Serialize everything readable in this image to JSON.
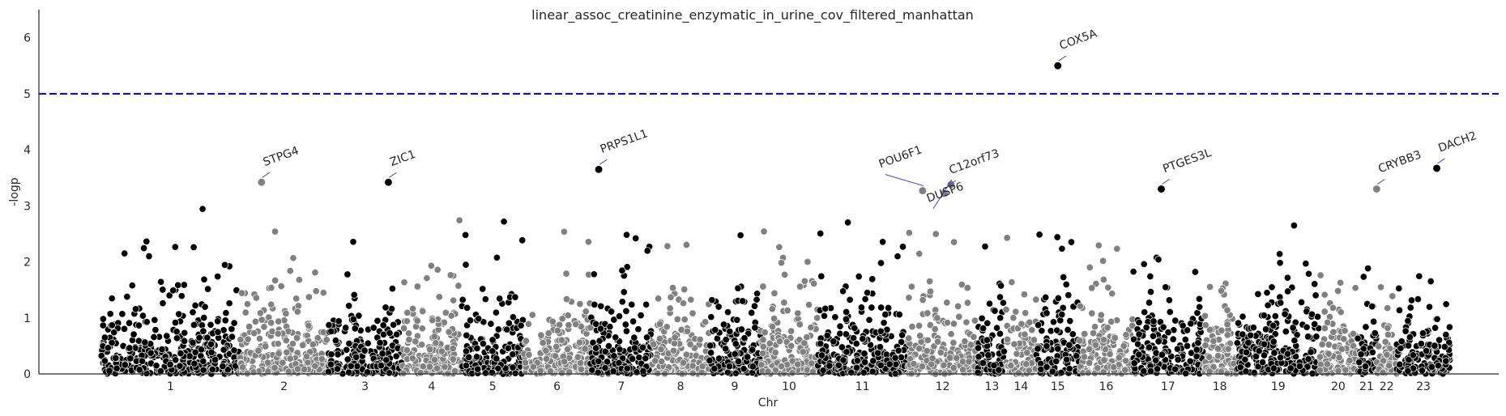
{
  "chart_data": {
    "type": "scatter",
    "title": "linear_assoc_creatinine_enzymatic_in_urine_cov_filtered_manhattan",
    "xlabel": "Chr",
    "ylabel": "-logp",
    "ylim": [
      0,
      6.5
    ],
    "yticks": [
      0,
      1,
      2,
      3,
      4,
      5,
      6
    ],
    "threshold": 5,
    "threshold_color": "#0000cc",
    "colors": {
      "dark": "#000000",
      "light": "#808080"
    },
    "chromosomes": [
      {
        "label": "1",
        "start": 0.0,
        "end": 8.3
      },
      {
        "label": "2",
        "start": 8.3,
        "end": 13.6
      },
      {
        "label": "3",
        "start": 13.6,
        "end": 18.0
      },
      {
        "label": "4",
        "start": 18.0,
        "end": 21.6
      },
      {
        "label": "5",
        "start": 21.6,
        "end": 25.3
      },
      {
        "label": "6",
        "start": 25.3,
        "end": 29.3
      },
      {
        "label": "7",
        "start": 29.3,
        "end": 33.0
      },
      {
        "label": "8",
        "start": 33.0,
        "end": 36.4
      },
      {
        "label": "9",
        "start": 36.4,
        "end": 39.5
      },
      {
        "label": "10",
        "start": 39.5,
        "end": 42.9
      },
      {
        "label": "11",
        "start": 42.9,
        "end": 48.3
      },
      {
        "label": "12",
        "start": 48.3,
        "end": 52.5
      },
      {
        "label": "13",
        "start": 52.5,
        "end": 54.2
      },
      {
        "label": "14",
        "start": 54.2,
        "end": 56.0
      },
      {
        "label": "15",
        "start": 56.0,
        "end": 58.6
      },
      {
        "label": "16",
        "start": 58.6,
        "end": 61.8
      },
      {
        "label": "17",
        "start": 61.8,
        "end": 66.0
      },
      {
        "label": "18",
        "start": 66.0,
        "end": 68.0
      },
      {
        "label": "19",
        "start": 68.0,
        "end": 73.0
      },
      {
        "label": "20",
        "start": 73.0,
        "end": 75.2
      },
      {
        "label": "21",
        "start": 75.2,
        "end": 76.4
      },
      {
        "label": "22",
        "start": 76.4,
        "end": 77.6
      },
      {
        "label": "23",
        "start": 77.6,
        "end": 80.8
      }
    ],
    "top_hits": [
      {
        "label": "STPG4",
        "chr": "2",
        "x": 9.6,
        "y": 3.42
      },
      {
        "label": "ZIC1",
        "chr": "3",
        "x": 17.2,
        "y": 3.42
      },
      {
        "label": "PRPS1L1",
        "chr": "7",
        "x": 29.8,
        "y": 3.65
      },
      {
        "label": "POU6F1",
        "chr": "12",
        "x": 49.2,
        "y": 3.27
      },
      {
        "label": "C12orf73",
        "chr": "12",
        "x": 50.5,
        "y": 3.22
      },
      {
        "label": "DUSP6",
        "chr": "12",
        "x": 50.9,
        "y": 3.38
      },
      {
        "label": "COX5A",
        "chr": "15",
        "x": 57.3,
        "y": 5.5
      },
      {
        "label": "PTGES3L",
        "chr": "17",
        "x": 63.5,
        "y": 3.3
      },
      {
        "label": "CRYBB3",
        "chr": "22",
        "x": 76.4,
        "y": 3.3
      },
      {
        "label": "DACH2",
        "chr": "23",
        "x": 80.0,
        "y": 3.67
      }
    ]
  }
}
